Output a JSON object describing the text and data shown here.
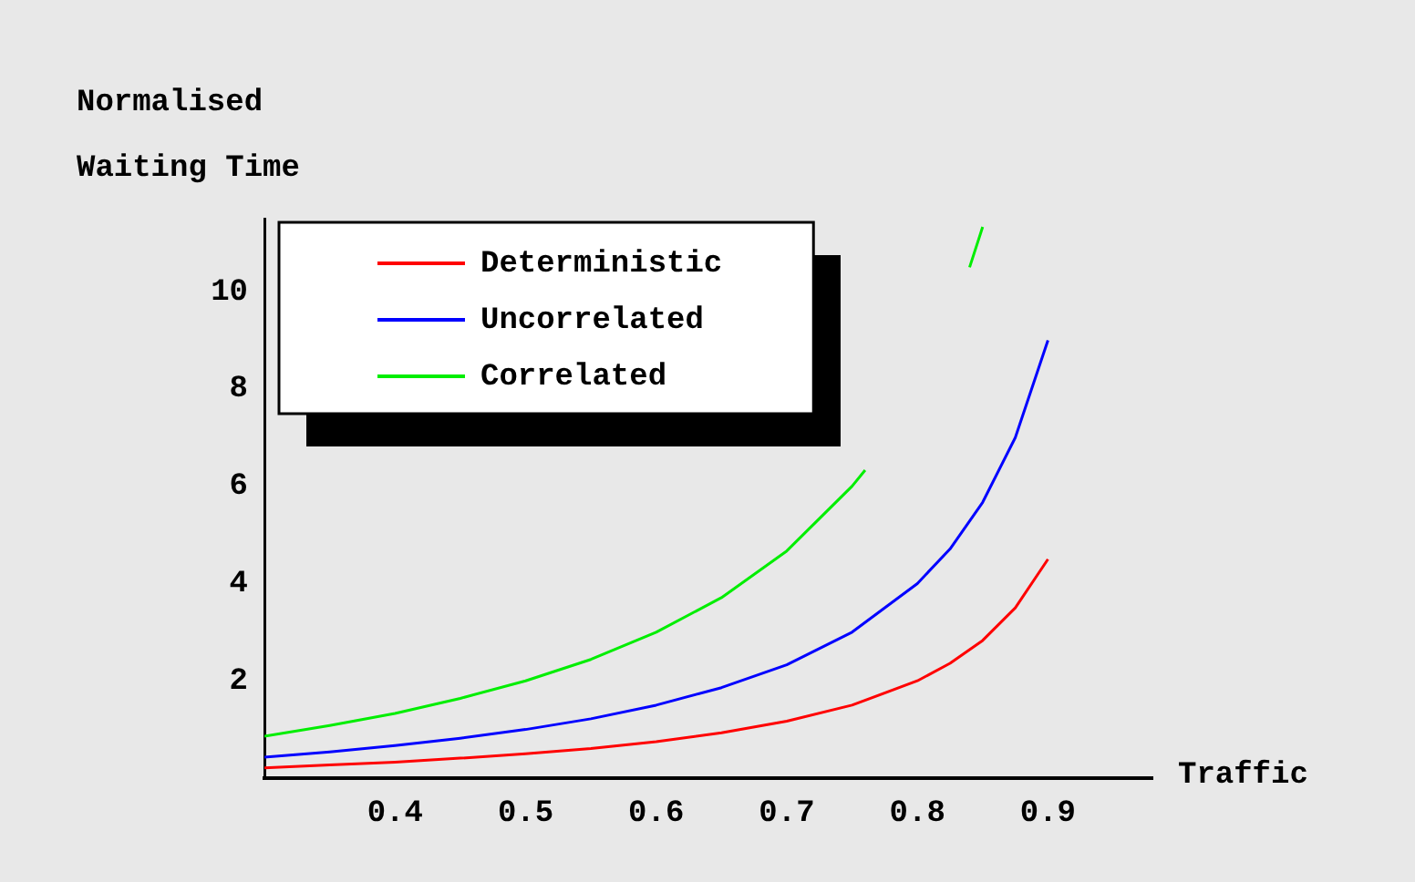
{
  "chart_data": {
    "type": "line",
    "xlabel": "Traffic",
    "ylabel": "Normalised Waiting Time",
    "x": [
      0.3,
      0.35,
      0.4,
      0.45,
      0.5,
      0.55,
      0.6,
      0.65,
      0.7,
      0.75,
      0.8,
      0.825,
      0.85,
      0.875,
      0.9
    ],
    "series": [
      {
        "name": "Deterministic",
        "color": "#ff0000",
        "values": [
          0.21,
          0.27,
          0.33,
          0.41,
          0.5,
          0.61,
          0.75,
          0.93,
          1.17,
          1.5,
          2.0,
          2.36,
          2.83,
          3.5,
          4.5
        ]
      },
      {
        "name": "Uncorrelated",
        "color": "#0000ff",
        "values": [
          0.43,
          0.54,
          0.67,
          0.82,
          1.0,
          1.22,
          1.5,
          1.86,
          2.33,
          3.0,
          4.0,
          4.71,
          5.67,
          7.0,
          9.0
        ]
      },
      {
        "name": "Correlated",
        "color": "#00ee00",
        "x": [
          0.3,
          0.35,
          0.4,
          0.45,
          0.5,
          0.55,
          0.6,
          0.65,
          0.7,
          0.75,
          0.76,
          0.8,
          0.84,
          0.85
        ],
        "values": [
          0.86,
          1.08,
          1.33,
          1.64,
          2.0,
          2.44,
          3.0,
          3.71,
          4.67,
          6.0,
          6.33,
          null,
          10.5,
          11.33
        ]
      }
    ],
    "xlim": [
      0.3,
      0.98
    ],
    "xticks": [
      0.4,
      0.5,
      0.6,
      0.7,
      0.8,
      0.9
    ],
    "ylim": [
      0,
      11.5
    ],
    "yticks": [
      2,
      4,
      6,
      8,
      10
    ],
    "grid": false,
    "legend": "top left",
    "marker": "none",
    "line_style": "solid"
  }
}
